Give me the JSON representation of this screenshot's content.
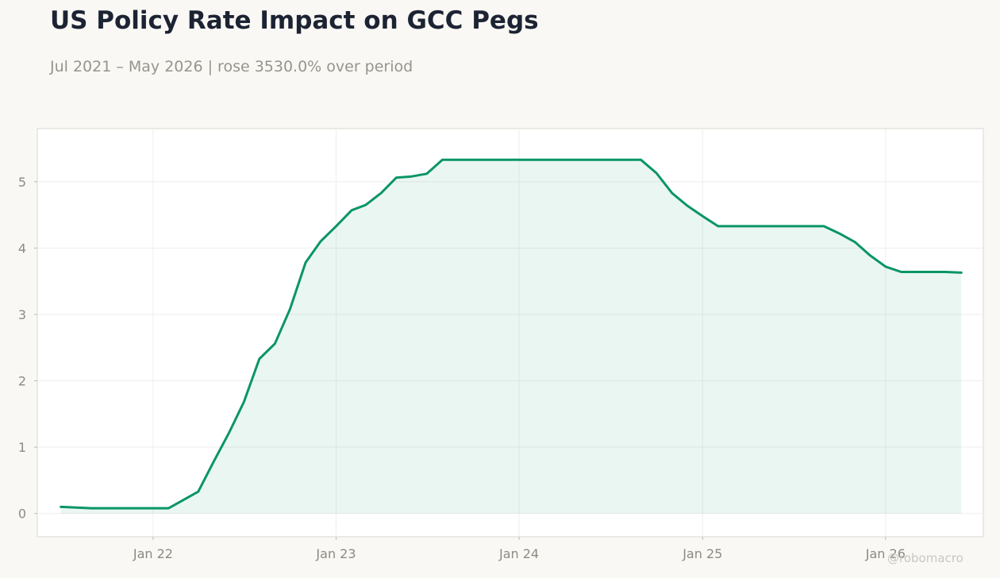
{
  "title": "US Policy Rate Impact on GCC Pegs",
  "subtitle": "Jul 2021 – May 2026 | rose 3530.0% over period",
  "watermark": "@robomacro",
  "colors": {
    "line": "#0a9566",
    "fill": "#0a9566",
    "grid": "#eeeeea",
    "tick_text": "#8d8a83"
  },
  "chart_data": {
    "type": "area",
    "title": "US Policy Rate Impact on GCC Pegs",
    "subtitle": "Jul 2021 – May 2026 | rose 3530.0% over period",
    "xlabel": "",
    "ylabel": "",
    "grid": true,
    "legend": "none",
    "xlim": [
      "2021-05-15",
      "2026-07-15"
    ],
    "ylim": [
      -0.35,
      5.8
    ],
    "x_ticks": [
      {
        "date": "2022-01-01",
        "label": "Jan 22"
      },
      {
        "date": "2023-01-01",
        "label": "Jan 23"
      },
      {
        "date": "2024-01-01",
        "label": "Jan 24"
      },
      {
        "date": "2025-01-01",
        "label": "Jan 25"
      },
      {
        "date": "2026-01-01",
        "label": "Jan 26"
      }
    ],
    "y_ticks": [
      0,
      1,
      2,
      3,
      4,
      5
    ],
    "series": [
      {
        "points": [
          [
            "2021-07-01",
            0.1
          ],
          [
            "2021-08-31",
            0.08
          ],
          [
            "2021-10-31",
            0.08
          ],
          [
            "2021-12-31",
            0.08
          ],
          [
            "2022-02-01",
            0.08
          ],
          [
            "2022-04-01",
            0.33
          ],
          [
            "2022-05-01",
            0.77
          ],
          [
            "2022-06-01",
            1.21
          ],
          [
            "2022-07-01",
            1.68
          ],
          [
            "2022-08-01",
            2.33
          ],
          [
            "2022-09-01",
            2.56
          ],
          [
            "2022-10-01",
            3.08
          ],
          [
            "2022-11-01",
            3.78
          ],
          [
            "2022-12-01",
            4.1
          ],
          [
            "2023-01-01",
            4.33
          ],
          [
            "2023-02-01",
            4.57
          ],
          [
            "2023-03-01",
            4.65
          ],
          [
            "2023-04-01",
            4.83
          ],
          [
            "2023-05-01",
            5.06
          ],
          [
            "2023-06-01",
            5.08
          ],
          [
            "2023-07-01",
            5.12
          ],
          [
            "2023-08-01",
            5.33
          ],
          [
            "2024-08-31",
            5.33
          ],
          [
            "2024-10-01",
            5.13
          ],
          [
            "2024-11-01",
            4.83
          ],
          [
            "2024-12-01",
            4.64
          ],
          [
            "2025-01-01",
            4.48
          ],
          [
            "2025-02-01",
            4.33
          ],
          [
            "2025-08-31",
            4.33
          ],
          [
            "2025-10-01",
            4.22
          ],
          [
            "2025-11-01",
            4.09
          ],
          [
            "2025-12-01",
            3.89
          ],
          [
            "2026-01-01",
            3.72
          ],
          [
            "2026-02-01",
            3.64
          ],
          [
            "2026-04-30",
            3.64
          ],
          [
            "2026-06-01",
            3.63
          ]
        ]
      }
    ]
  }
}
